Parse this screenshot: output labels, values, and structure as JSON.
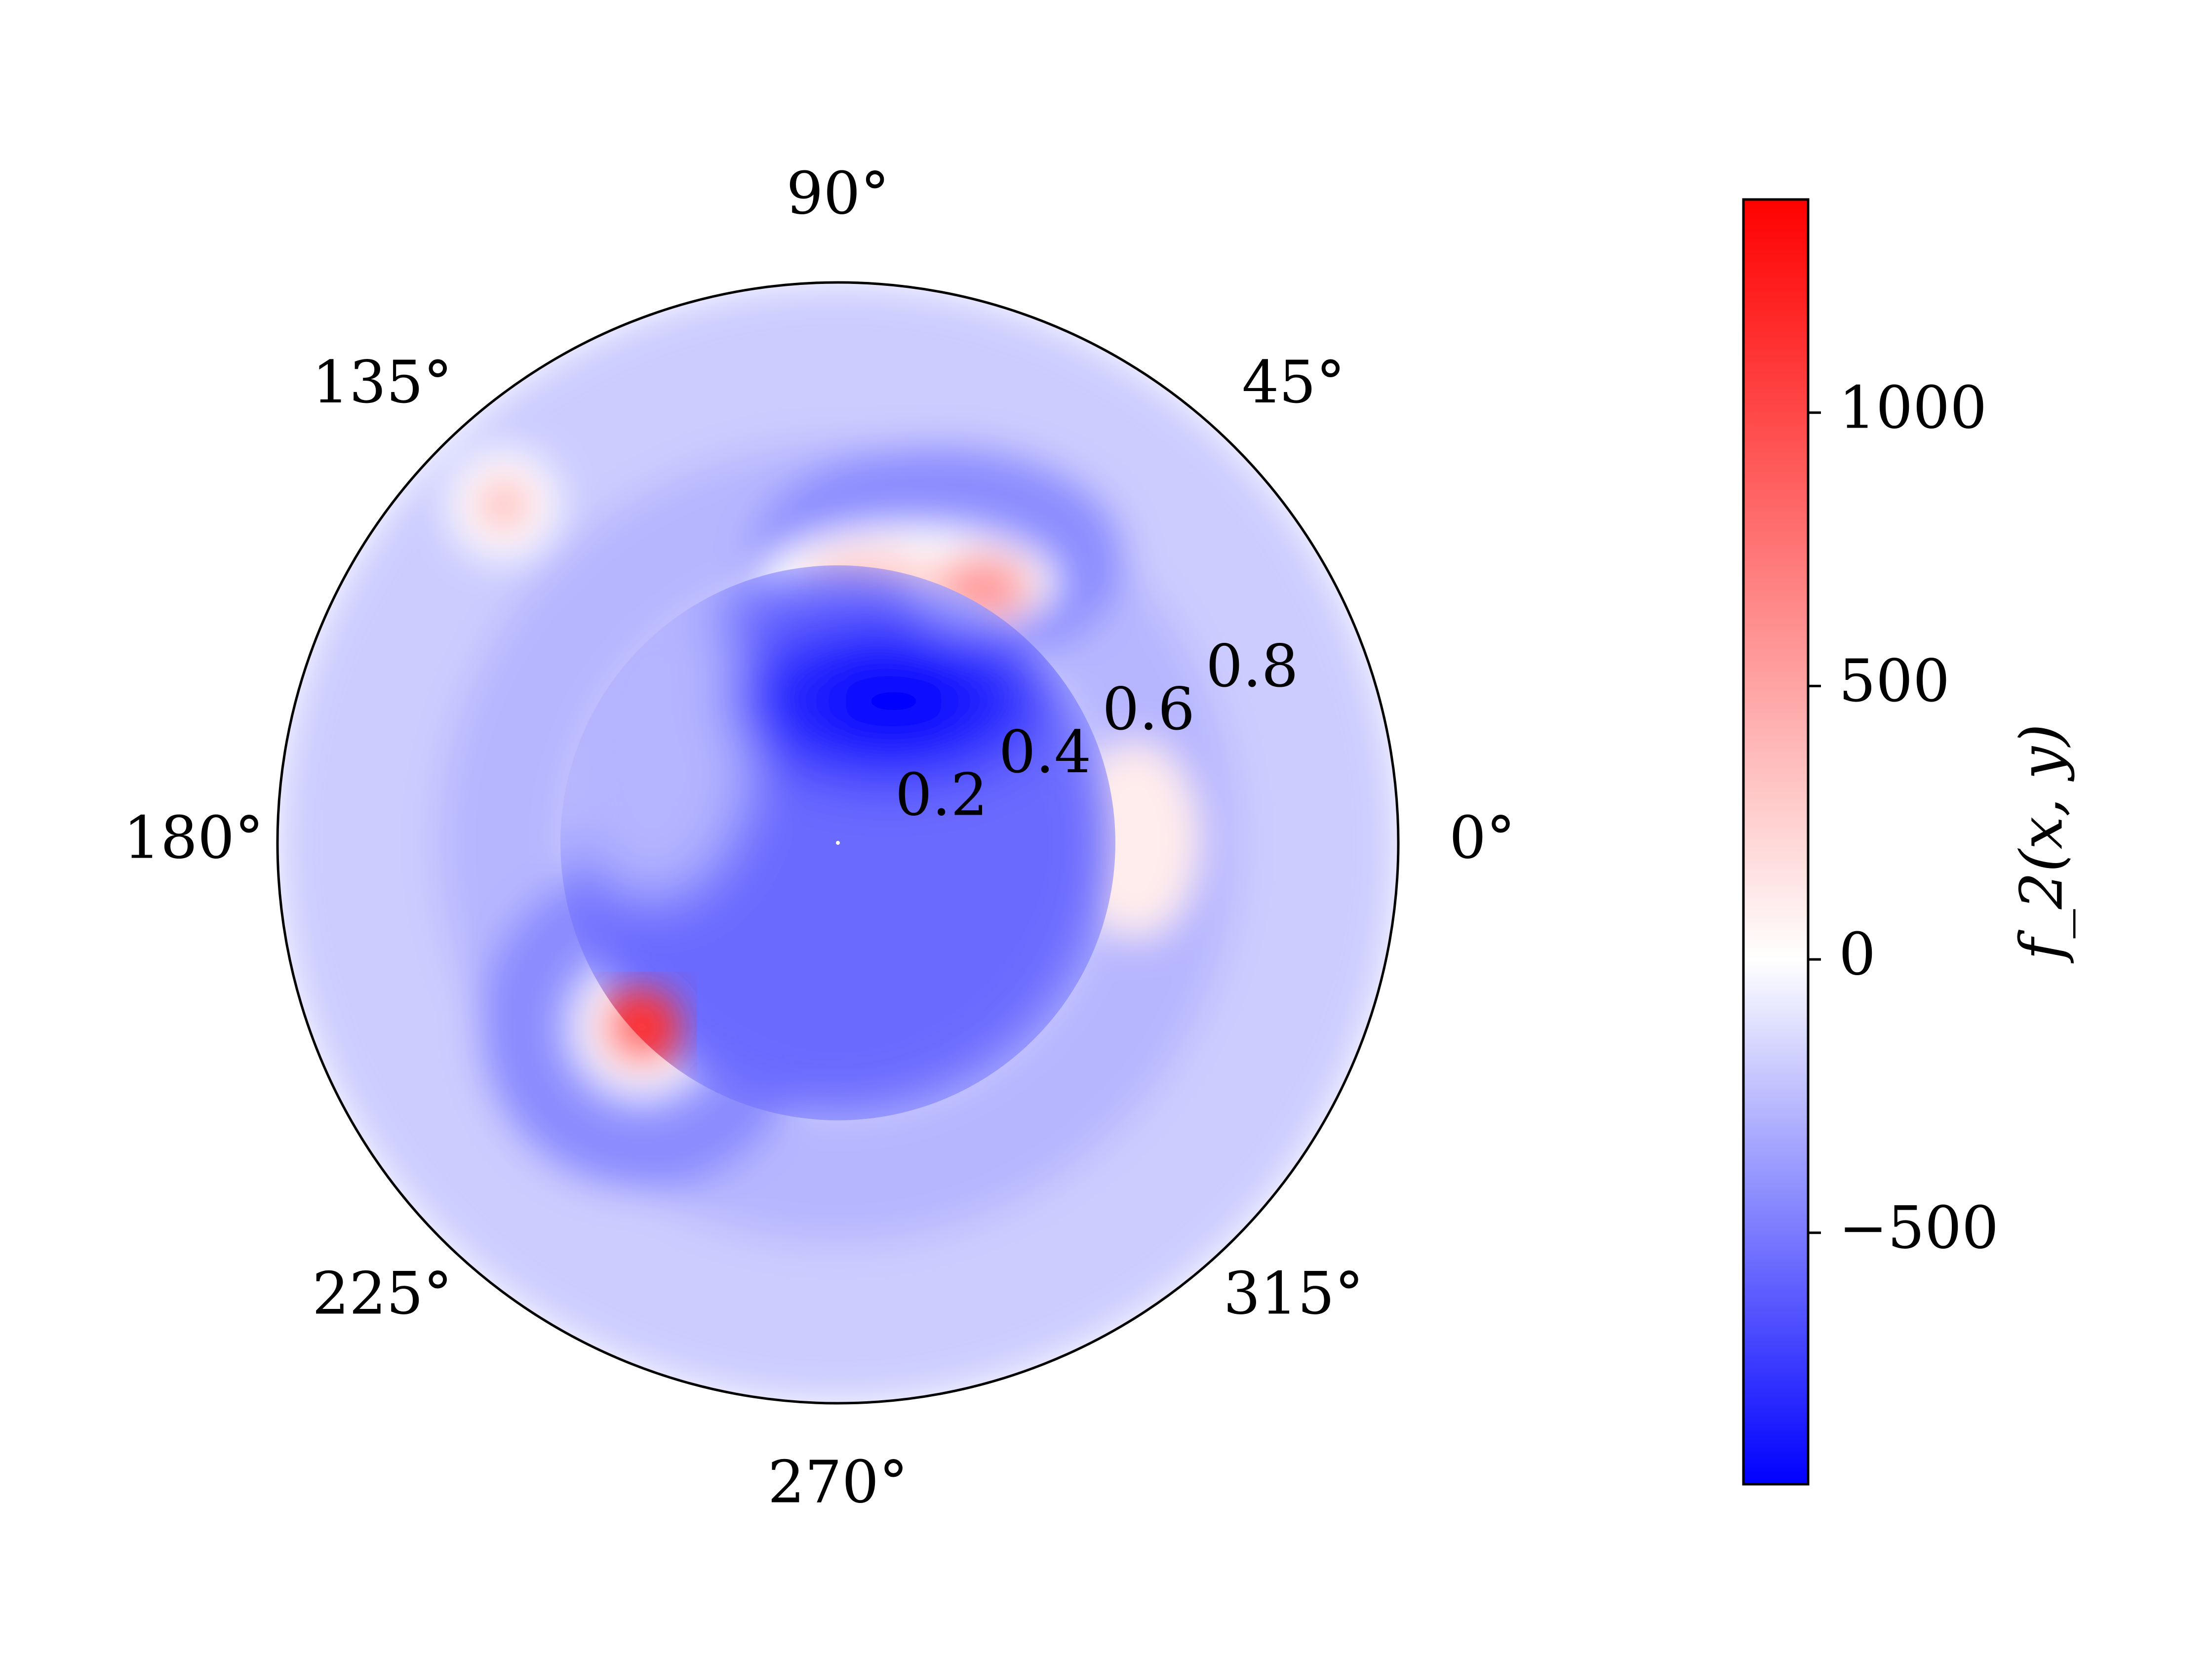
{
  "chart_data": {
    "type": "heatmap",
    "projection": "polar",
    "grid": false,
    "theta_ticks": [
      {
        "deg": 0,
        "label": "0°"
      },
      {
        "deg": 45,
        "label": "45°"
      },
      {
        "deg": 90,
        "label": "90°"
      },
      {
        "deg": 135,
        "label": "135°"
      },
      {
        "deg": 180,
        "label": "180°"
      },
      {
        "deg": 225,
        "label": "225°"
      },
      {
        "deg": 270,
        "label": "270°"
      },
      {
        "deg": 315,
        "label": "315°"
      }
    ],
    "r_ticks": [
      {
        "value": 0.2,
        "label": "0.2"
      },
      {
        "value": 0.4,
        "label": "0.4"
      },
      {
        "value": 0.6,
        "label": "0.6"
      },
      {
        "value": 0.8,
        "label": "0.8"
      }
    ],
    "r_label_angle_deg": 22.5,
    "rlim": [
      0,
      1
    ],
    "colormap": "bwr",
    "colorbar": {
      "label": "f_2(x, y)",
      "vmin": -960,
      "vmax": 1390,
      "ticks": [
        {
          "value": 1000,
          "label": "1000"
        },
        {
          "value": 500,
          "label": "500"
        },
        {
          "value": 0,
          "label": "0"
        },
        {
          "value": -500,
          "label": "−500"
        }
      ]
    },
    "field_features": {
      "background_value": 0,
      "positive_peaks": [
        {
          "x": -0.6,
          "y": 0.6,
          "value": 450
        },
        {
          "x": 0.12,
          "y": 0.47,
          "value": 700
        },
        {
          "x": 0.27,
          "y": 0.42,
          "value": 800
        },
        {
          "x": 0.45,
          "y": 0.0,
          "value": 300
        },
        {
          "x": -0.35,
          "y": -0.37,
          "value": 1390
        }
      ],
      "inner_disk_minimum": {
        "x": 0.1,
        "y": 0.25,
        "value": -960
      }
    }
  }
}
